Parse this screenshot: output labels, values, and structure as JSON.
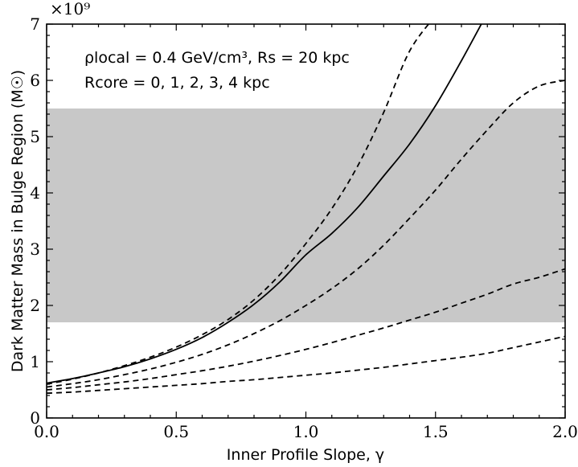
{
  "chart_data": {
    "type": "line",
    "xlabel": "Inner Profile Slope, γ",
    "ylabel": "Dark Matter Mass in Bulge Region (M☉)",
    "xlim": [
      0.0,
      2.0
    ],
    "ylim": [
      0,
      7
    ],
    "y_multiplier": "×10⁹",
    "x_ticks": [
      "0.0",
      "0.5",
      "1.0",
      "1.5",
      "2.0"
    ],
    "y_ticks": [
      "0",
      "1",
      "2",
      "3",
      "4",
      "5",
      "6",
      "7"
    ],
    "band": {
      "ymin": 1.7,
      "ymax": 5.5,
      "color": "#c8c8c8"
    },
    "annotation": {
      "line1": "ρlocal = 0.4 GeV/cm³, Rs = 20 kpc",
      "line2": "Rcore = 0, 1, 2, 3, 4 kpc"
    },
    "x": [
      0.0,
      0.1,
      0.2,
      0.3,
      0.4,
      0.5,
      0.6,
      0.7,
      0.8,
      0.9,
      1.0,
      1.1,
      1.2,
      1.3,
      1.4,
      1.5,
      1.6,
      1.7,
      1.8,
      1.9,
      2.0
    ],
    "series": [
      {
        "style": "solid",
        "values": [
          0.62,
          0.7,
          0.8,
          0.91,
          1.05,
          1.22,
          1.43,
          1.7,
          2.02,
          2.42,
          2.9,
          3.28,
          3.74,
          4.3,
          4.87,
          5.55,
          6.35,
          7.2,
          null,
          null,
          null
        ]
      },
      {
        "style": "dashed",
        "values": [
          0.6,
          0.69,
          0.8,
          0.93,
          1.08,
          1.26,
          1.48,
          1.75,
          2.1,
          2.55,
          3.1,
          3.72,
          4.48,
          5.43,
          6.52,
          7.15,
          null,
          null,
          null,
          null,
          null
        ]
      },
      {
        "style": "dashed",
        "values": [
          0.55,
          0.61,
          0.68,
          0.77,
          0.87,
          0.99,
          1.13,
          1.3,
          1.5,
          1.73,
          2.0,
          2.3,
          2.65,
          3.07,
          3.55,
          4.05,
          4.6,
          5.12,
          5.6,
          5.9,
          6.0
        ]
      },
      {
        "style": "dashed",
        "values": [
          0.5,
          0.54,
          0.59,
          0.64,
          0.7,
          0.77,
          0.84,
          0.92,
          1.01,
          1.11,
          1.22,
          1.34,
          1.47,
          1.6,
          1.74,
          1.88,
          2.04,
          2.2,
          2.38,
          2.5,
          2.65
        ]
      },
      {
        "style": "dashed",
        "values": [
          0.44,
          0.46,
          0.49,
          0.52,
          0.55,
          0.58,
          0.61,
          0.65,
          0.68,
          0.72,
          0.76,
          0.8,
          0.85,
          0.9,
          0.96,
          1.02,
          1.08,
          1.15,
          1.25,
          1.35,
          1.45
        ]
      }
    ]
  }
}
